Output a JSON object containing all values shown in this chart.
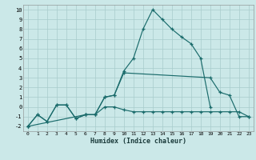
{
  "xlabel": "Humidex (Indice chaleur)",
  "xlim": [
    -0.5,
    23.5
  ],
  "ylim": [
    -2.5,
    10.5
  ],
  "xticks": [
    0,
    1,
    2,
    3,
    4,
    5,
    6,
    7,
    8,
    9,
    10,
    11,
    12,
    13,
    14,
    15,
    16,
    17,
    18,
    19,
    20,
    21,
    22,
    23
  ],
  "yticks": [
    -2,
    -1,
    0,
    1,
    2,
    3,
    4,
    5,
    6,
    7,
    8,
    9,
    10
  ],
  "bg_color": "#cbe8e8",
  "grid_color": "#a8cccc",
  "line_color": "#1a6b6b",
  "curve1_x": [
    0,
    1,
    2,
    3,
    4,
    5,
    6,
    7,
    8,
    9,
    10,
    11,
    12,
    13,
    14,
    15,
    16,
    17,
    18,
    19
  ],
  "curve1_y": [
    -2,
    -0.8,
    -1.5,
    0.2,
    0.2,
    -1.2,
    -0.8,
    -0.8,
    1.0,
    1.2,
    3.7,
    5.0,
    8.0,
    10.0,
    9.0,
    8.0,
    7.2,
    6.5,
    5.0,
    0.0
  ],
  "curve2_x": [
    0,
    1,
    2,
    3,
    4,
    5,
    6,
    7,
    8,
    9,
    10,
    19,
    20,
    21,
    22,
    23
  ],
  "curve2_y": [
    -2,
    -0.8,
    -1.5,
    0.2,
    0.2,
    -1.2,
    -0.8,
    -0.8,
    1.0,
    1.2,
    3.5,
    3.0,
    1.5,
    1.2,
    -1.0,
    -1.0
  ],
  "curve3_x": [
    0,
    6,
    7,
    8,
    9,
    10,
    11,
    12,
    13,
    14,
    15,
    16,
    17,
    18,
    19,
    20,
    21,
    22,
    23
  ],
  "curve3_y": [
    -2,
    -0.8,
    -0.8,
    0.0,
    0.0,
    -0.3,
    -0.5,
    -0.5,
    -0.5,
    -0.5,
    -0.5,
    -0.5,
    -0.5,
    -0.5,
    -0.5,
    -0.5,
    -0.5,
    -0.5,
    -1.0
  ]
}
